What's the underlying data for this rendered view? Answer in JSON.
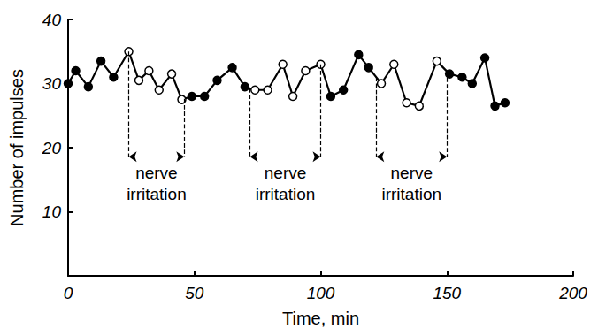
{
  "chart_data": {
    "type": "line",
    "x_label": "Time, min",
    "y_label": "Number of impulses",
    "x": [
      0,
      3,
      8,
      13,
      18,
      24,
      28,
      32,
      36,
      41,
      45,
      49,
      54,
      59,
      65,
      70,
      74,
      79,
      85,
      89,
      94,
      100,
      104,
      109,
      115,
      119,
      124,
      129,
      134,
      139,
      146,
      151,
      156,
      160,
      165,
      169,
      173
    ],
    "values": [
      30,
      32,
      29.5,
      33.5,
      31,
      35,
      30.5,
      32,
      29,
      31.5,
      27.5,
      28,
      28,
      30.5,
      32.5,
      29.5,
      29,
      29,
      33,
      28,
      32,
      33,
      28,
      29,
      34.5,
      32.5,
      30,
      33,
      27,
      26.5,
      33.5,
      31.5,
      31,
      30,
      34,
      26.5,
      27
    ],
    "color": "#000000",
    "marker": "circle",
    "xlim": [
      0,
      200
    ],
    "xticks": [
      0,
      50,
      100,
      150,
      200
    ],
    "ylim": [
      0,
      40
    ],
    "yticks": [
      10,
      20,
      30,
      40
    ],
    "grid": false,
    "annotations": [
      {
        "label": "nerve irritation",
        "start": 24,
        "end": 46
      },
      {
        "label": "nerve irritation",
        "start": 72,
        "end": 100
      },
      {
        "label": "nerve irritation",
        "start": 122,
        "end": 150
      }
    ]
  }
}
